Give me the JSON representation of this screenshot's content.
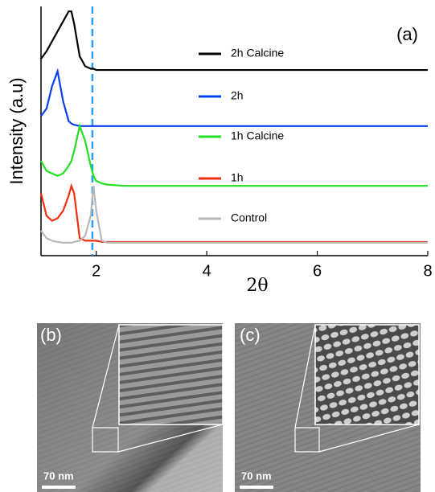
{
  "chart_data": {
    "type": "line",
    "annotation": "(a)",
    "x_label": "2θ",
    "y_label": "Intensity (a.u)",
    "x": [
      1,
      1.1,
      1.2,
      1.3,
      1.4,
      1.5,
      1.55,
      1.6,
      1.7,
      1.8,
      1.9,
      1.95,
      2,
      2.1,
      2.2,
      2.5,
      3,
      4,
      5,
      6,
      7,
      8
    ],
    "xlim": [
      1,
      8
    ],
    "xticks": [
      2,
      4,
      6,
      8
    ],
    "ylim": [
      0,
      10
    ],
    "vline": {
      "x": 1.93,
      "color": "#2a9df4"
    },
    "series": [
      {
        "name": "2h Calcine",
        "color": "#000000",
        "values": [
          7.9,
          8.2,
          8.6,
          9.0,
          9.4,
          9.8,
          9.8,
          9.3,
          8.0,
          7.6,
          7.5,
          7.5,
          7.45,
          7.45,
          7.45,
          7.45,
          7.45,
          7.45,
          7.45,
          7.45,
          7.45,
          7.45
        ]
      },
      {
        "name": "2h",
        "color": "#0a3ff0",
        "values": [
          5.6,
          5.9,
          6.8,
          7.4,
          6.2,
          5.4,
          5.3,
          5.25,
          5.2,
          5.2,
          5.2,
          5.2,
          5.2,
          5.2,
          5.2,
          5.2,
          5.2,
          5.2,
          5.2,
          5.2,
          5.2,
          5.2
        ]
      },
      {
        "name": "1h Calcine",
        "color": "#22e022",
        "values": [
          3.8,
          3.4,
          3.3,
          3.2,
          3.3,
          3.6,
          3.8,
          4.2,
          5.2,
          4.6,
          3.6,
          3.2,
          3.0,
          2.9,
          2.85,
          2.8,
          2.8,
          2.8,
          2.8,
          2.8,
          2.8,
          2.8
        ]
      },
      {
        "name": "1h",
        "color": "#f03010",
        "values": [
          2.5,
          1.6,
          1.4,
          1.5,
          1.8,
          2.4,
          2.8,
          2.5,
          0.7,
          0.6,
          0.6,
          0.6,
          0.6,
          0.55,
          0.55,
          0.55,
          0.55,
          0.55,
          0.55,
          0.55,
          0.55,
          0.55
        ]
      },
      {
        "name": "Control",
        "color": "#b8b8b8",
        "values": [
          1.0,
          0.7,
          0.6,
          0.55,
          0.52,
          0.52,
          0.52,
          0.55,
          0.6,
          0.8,
          1.6,
          2.8,
          1.8,
          0.6,
          0.52,
          0.52,
          0.52,
          0.52,
          0.52,
          0.52,
          0.52,
          0.52
        ]
      }
    ]
  },
  "panels": [
    {
      "label": "(b)",
      "scale_bar": "70 nm"
    },
    {
      "label": "(c)",
      "scale_bar": "70 nm"
    }
  ]
}
